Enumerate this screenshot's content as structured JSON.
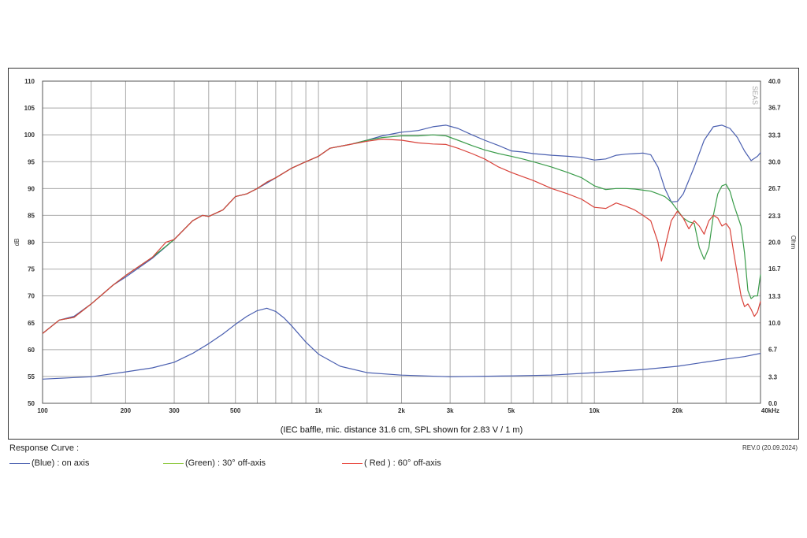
{
  "chart_data": {
    "type": "line",
    "x_scale": "log",
    "xlim": [
      100,
      40000
    ],
    "ylim": [
      50,
      110
    ],
    "y2lim": [
      0,
      40
    ],
    "grid": true,
    "left_axis_label": "dB",
    "right_axis_label": "Ohm",
    "x_ticks": [
      {
        "value": 100,
        "label": "100"
      },
      {
        "value": 200,
        "label": "200"
      },
      {
        "value": 300,
        "label": "300"
      },
      {
        "value": 500,
        "label": "500"
      },
      {
        "value": 1000,
        "label": "1k"
      },
      {
        "value": 2000,
        "label": "2k"
      },
      {
        "value": 3000,
        "label": "3k"
      },
      {
        "value": 5000,
        "label": "5k"
      },
      {
        "value": 10000,
        "label": "10k"
      },
      {
        "value": 20000,
        "label": "20k"
      },
      {
        "value": 40000,
        "label": "40kHz"
      }
    ],
    "x_grid": [
      100,
      150,
      200,
      300,
      400,
      500,
      600,
      700,
      800,
      900,
      1000,
      1500,
      2000,
      3000,
      4000,
      5000,
      6000,
      7000,
      8000,
      9000,
      10000,
      15000,
      20000,
      30000,
      40000
    ],
    "y_ticks": [
      {
        "value": 110,
        "label": "110"
      },
      {
        "value": 105,
        "label": "105"
      },
      {
        "value": 100,
        "label": "100"
      },
      {
        "value": 95,
        "label": "95"
      },
      {
        "value": 90,
        "label": "90"
      },
      {
        "value": 85,
        "label": "85"
      },
      {
        "value": 80,
        "label": "80"
      },
      {
        "value": 75,
        "label": "75"
      },
      {
        "value": 70,
        "label": "70"
      },
      {
        "value": 65,
        "label": "65"
      },
      {
        "value": 60,
        "label": "60"
      },
      {
        "value": 55,
        "label": "55"
      },
      {
        "value": 50,
        "label": "50"
      }
    ],
    "y2_ticks": [
      {
        "value": 40.0,
        "label": "40.0"
      },
      {
        "value": 36.7,
        "label": "36.7"
      },
      {
        "value": 33.3,
        "label": "33.3"
      },
      {
        "value": 30.0,
        "label": "30.0"
      },
      {
        "value": 26.7,
        "label": "26.7"
      },
      {
        "value": 23.3,
        "label": "23.3"
      },
      {
        "value": 20.0,
        "label": "20.0"
      },
      {
        "value": 16.7,
        "label": "16.7"
      },
      {
        "value": 13.3,
        "label": "13.3"
      },
      {
        "value": 10.0,
        "label": "10.0"
      },
      {
        "value": 6.7,
        "label": "6.7"
      },
      {
        "value": 3.3,
        "label": "3.3"
      },
      {
        "value": 0.0,
        "label": "0.0"
      }
    ],
    "caption": "(IEC baffle, mic. distance 31.6 cm, SPL shown for 2.83 V / 1 m)",
    "series": [
      {
        "name": "(Blue)  : on axis",
        "color": "#4a5fb0",
        "axis": "left",
        "points": [
          [
            100,
            63
          ],
          [
            115,
            65.5
          ],
          [
            130,
            66.2
          ],
          [
            150,
            68.5
          ],
          [
            180,
            72
          ],
          [
            200,
            73.5
          ],
          [
            250,
            77
          ],
          [
            300,
            80.5
          ],
          [
            350,
            84
          ],
          [
            380,
            85
          ],
          [
            400,
            84.8
          ],
          [
            450,
            86
          ],
          [
            500,
            88.5
          ],
          [
            550,
            89
          ],
          [
            600,
            90
          ],
          [
            650,
            91
          ],
          [
            700,
            92
          ],
          [
            800,
            93.8
          ],
          [
            900,
            95
          ],
          [
            1000,
            96
          ],
          [
            1100,
            97.5
          ],
          [
            1300,
            98.2
          ],
          [
            1500,
            99
          ],
          [
            1700,
            99.8
          ],
          [
            2000,
            100.5
          ],
          [
            2300,
            100.8
          ],
          [
            2600,
            101.5
          ],
          [
            2900,
            101.8
          ],
          [
            3200,
            101.2
          ],
          [
            3600,
            100
          ],
          [
            4000,
            99
          ],
          [
            4500,
            98
          ],
          [
            5000,
            97
          ],
          [
            5500,
            96.8
          ],
          [
            6000,
            96.5
          ],
          [
            7000,
            96.2
          ],
          [
            8000,
            96
          ],
          [
            9000,
            95.8
          ],
          [
            10000,
            95.3
          ],
          [
            11000,
            95.5
          ],
          [
            12000,
            96.2
          ],
          [
            13000,
            96.4
          ],
          [
            14000,
            96.5
          ],
          [
            15000,
            96.6
          ],
          [
            16000,
            96.3
          ],
          [
            17000,
            94
          ],
          [
            18000,
            90
          ],
          [
            19000,
            87.5
          ],
          [
            20000,
            87.6
          ],
          [
            21000,
            89
          ],
          [
            23000,
            94
          ],
          [
            25000,
            99
          ],
          [
            27000,
            101.5
          ],
          [
            29000,
            101.8
          ],
          [
            31000,
            101.2
          ],
          [
            33000,
            99.5
          ],
          [
            35000,
            97
          ],
          [
            37000,
            95.2
          ],
          [
            39000,
            96
          ],
          [
            40000,
            96.7
          ]
        ]
      },
      {
        "name": "(Green) : 30° off-axis",
        "color": "#3a9c4a",
        "axis": "left",
        "points": [
          [
            100,
            63
          ],
          [
            115,
            65.5
          ],
          [
            130,
            66
          ],
          [
            150,
            68.5
          ],
          [
            180,
            72
          ],
          [
            200,
            73.8
          ],
          [
            250,
            77.2
          ],
          [
            300,
            80.5
          ],
          [
            350,
            84
          ],
          [
            380,
            85
          ],
          [
            400,
            84.8
          ],
          [
            450,
            86
          ],
          [
            500,
            88.5
          ],
          [
            550,
            89
          ],
          [
            600,
            90
          ],
          [
            650,
            91.2
          ],
          [
            700,
            92
          ],
          [
            800,
            93.8
          ],
          [
            900,
            95
          ],
          [
            1000,
            96
          ],
          [
            1100,
            97.5
          ],
          [
            1300,
            98.2
          ],
          [
            1500,
            99
          ],
          [
            1700,
            99.5
          ],
          [
            2000,
            99.8
          ],
          [
            2300,
            99.8
          ],
          [
            2600,
            100
          ],
          [
            2900,
            99.8
          ],
          [
            3200,
            99
          ],
          [
            3600,
            98
          ],
          [
            4000,
            97.2
          ],
          [
            4500,
            96.5
          ],
          [
            5000,
            96
          ],
          [
            5500,
            95.5
          ],
          [
            6000,
            95
          ],
          [
            7000,
            94
          ],
          [
            8000,
            93
          ],
          [
            9000,
            92
          ],
          [
            10000,
            90.5
          ],
          [
            11000,
            89.8
          ],
          [
            12000,
            90
          ],
          [
            13000,
            90
          ],
          [
            14000,
            89.9
          ],
          [
            15000,
            89.7
          ],
          [
            16000,
            89.5
          ],
          [
            17000,
            89
          ],
          [
            18000,
            88.5
          ],
          [
            19000,
            87.5
          ],
          [
            20000,
            86
          ],
          [
            21000,
            84.5
          ],
          [
            22000,
            83.8
          ],
          [
            23000,
            83.5
          ],
          [
            24000,
            79
          ],
          [
            25000,
            76.8
          ],
          [
            26000,
            79
          ],
          [
            27000,
            85
          ],
          [
            28000,
            89
          ],
          [
            29000,
            90.5
          ],
          [
            30000,
            90.8
          ],
          [
            31000,
            89.5
          ],
          [
            32000,
            87
          ],
          [
            34000,
            83
          ],
          [
            35000,
            78
          ],
          [
            36000,
            71
          ],
          [
            37000,
            69.5
          ],
          [
            38000,
            70
          ],
          [
            39000,
            70
          ],
          [
            40000,
            74
          ]
        ]
      },
      {
        "name": "( Red )  : 60° off-axis",
        "color": "#d9423a",
        "axis": "left",
        "points": [
          [
            100,
            63
          ],
          [
            115,
            65.5
          ],
          [
            130,
            66
          ],
          [
            150,
            68.5
          ],
          [
            180,
            72
          ],
          [
            200,
            73.8
          ],
          [
            250,
            77.2
          ],
          [
            280,
            80
          ],
          [
            300,
            80.5
          ],
          [
            350,
            84
          ],
          [
            380,
            85
          ],
          [
            400,
            84.8
          ],
          [
            450,
            86
          ],
          [
            500,
            88.5
          ],
          [
            550,
            89
          ],
          [
            600,
            90
          ],
          [
            650,
            91.2
          ],
          [
            700,
            92
          ],
          [
            800,
            93.8
          ],
          [
            900,
            95
          ],
          [
            1000,
            96
          ],
          [
            1100,
            97.5
          ],
          [
            1300,
            98.2
          ],
          [
            1500,
            98.8
          ],
          [
            1700,
            99.2
          ],
          [
            2000,
            99
          ],
          [
            2300,
            98.5
          ],
          [
            2600,
            98.3
          ],
          [
            2900,
            98.2
          ],
          [
            3200,
            97.5
          ],
          [
            3600,
            96.5
          ],
          [
            4000,
            95.5
          ],
          [
            4500,
            94
          ],
          [
            5000,
            93
          ],
          [
            5500,
            92.2
          ],
          [
            6000,
            91.5
          ],
          [
            7000,
            90
          ],
          [
            8000,
            89
          ],
          [
            9000,
            88
          ],
          [
            10000,
            86.5
          ],
          [
            11000,
            86.3
          ],
          [
            12000,
            87.3
          ],
          [
            13000,
            86.7
          ],
          [
            14000,
            86
          ],
          [
            15000,
            85
          ],
          [
            16000,
            84
          ],
          [
            17000,
            80
          ],
          [
            17500,
            76.5
          ],
          [
            18000,
            79
          ],
          [
            19000,
            84
          ],
          [
            20000,
            85.8
          ],
          [
            21000,
            84.5
          ],
          [
            22000,
            82.5
          ],
          [
            23000,
            84
          ],
          [
            24000,
            83
          ],
          [
            25000,
            81.5
          ],
          [
            26000,
            84
          ],
          [
            27000,
            85
          ],
          [
            28000,
            84.5
          ],
          [
            29000,
            83
          ],
          [
            30000,
            83.5
          ],
          [
            31000,
            82.5
          ],
          [
            32000,
            78
          ],
          [
            34000,
            70
          ],
          [
            35000,
            68
          ],
          [
            36000,
            68.5
          ],
          [
            37000,
            67.5
          ],
          [
            38000,
            66.2
          ],
          [
            39000,
            67
          ],
          [
            40000,
            69
          ]
        ]
      },
      {
        "name": "impedance",
        "color": "#4a5fb0",
        "axis": "right",
        "points": [
          [
            100,
            3.0
          ],
          [
            150,
            3.3
          ],
          [
            200,
            3.9
          ],
          [
            250,
            4.4
          ],
          [
            300,
            5.1
          ],
          [
            350,
            6.2
          ],
          [
            400,
            7.4
          ],
          [
            450,
            8.6
          ],
          [
            500,
            9.8
          ],
          [
            550,
            10.8
          ],
          [
            600,
            11.5
          ],
          [
            650,
            11.8
          ],
          [
            700,
            11.4
          ],
          [
            750,
            10.6
          ],
          [
            800,
            9.6
          ],
          [
            900,
            7.6
          ],
          [
            1000,
            6.1
          ],
          [
            1200,
            4.6
          ],
          [
            1500,
            3.8
          ],
          [
            2000,
            3.5
          ],
          [
            3000,
            3.3
          ],
          [
            5000,
            3.4
          ],
          [
            7000,
            3.5
          ],
          [
            10000,
            3.8
          ],
          [
            15000,
            4.2
          ],
          [
            20000,
            4.6
          ],
          [
            25000,
            5.1
          ],
          [
            30000,
            5.5
          ],
          [
            35000,
            5.8
          ],
          [
            40000,
            6.2
          ]
        ]
      }
    ]
  },
  "legend": {
    "title": "Response Curve :",
    "revision": "REV.0 (20.09.2024)",
    "items": [
      {
        "label": "(Blue)  : on axis",
        "color": "#4a5fb0"
      },
      {
        "label": "(Green) : 30° off-axis",
        "color": "#8cc83c"
      },
      {
        "label": "( Red )  : 60° off-axis",
        "color": "#e8453c"
      }
    ]
  },
  "watermark": "SEAS"
}
